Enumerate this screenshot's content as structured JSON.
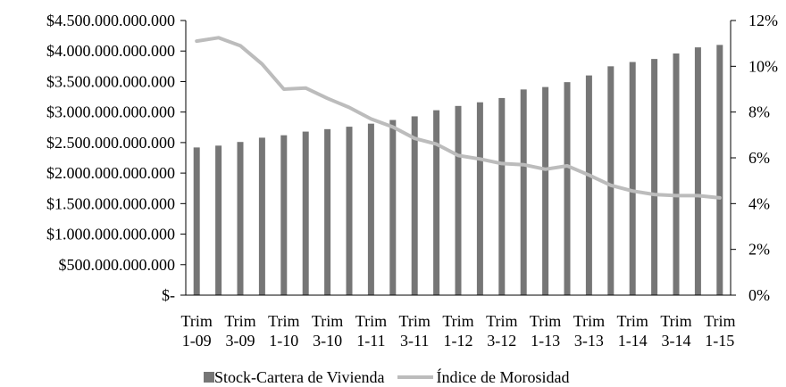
{
  "colors": {
    "bar": "#767676",
    "line": "#bcbcbc",
    "axis": "#000000"
  },
  "legend": {
    "bar_label": "Stock-Cartera de Vivienda",
    "line_label": "Índice de Morosidad"
  },
  "chart_data": {
    "type": "bar",
    "grid": false,
    "legend_position": "bottom",
    "x": [
      "1-09",
      "2-09",
      "3-09",
      "4-09",
      "1-10",
      "2-10",
      "3-10",
      "4-10",
      "1-11",
      "2-11",
      "3-11",
      "4-11",
      "1-12",
      "2-12",
      "3-12",
      "4-12",
      "1-13",
      "2-13",
      "3-13",
      "4-13",
      "1-14",
      "2-14",
      "3-14",
      "4-14",
      "1-15"
    ],
    "x_tick_labels": [
      {
        "index": 0,
        "line1": "Trim",
        "line2": "1-09"
      },
      {
        "index": 2,
        "line1": "Trim",
        "line2": "3-09"
      },
      {
        "index": 4,
        "line1": "Trim",
        "line2": "1-10"
      },
      {
        "index": 6,
        "line1": "Trim",
        "line2": "3-10"
      },
      {
        "index": 8,
        "line1": "Trim",
        "line2": "1-11"
      },
      {
        "index": 10,
        "line1": "Trim",
        "line2": "3-11"
      },
      {
        "index": 12,
        "line1": "Trim",
        "line2": "1-12"
      },
      {
        "index": 14,
        "line1": "Trim",
        "line2": "3-12"
      },
      {
        "index": 16,
        "line1": "Trim",
        "line2": "1-13"
      },
      {
        "index": 18,
        "line1": "Trim",
        "line2": "3-13"
      },
      {
        "index": 20,
        "line1": "Trim",
        "line2": "1-14"
      },
      {
        "index": 22,
        "line1": "Trim",
        "line2": "3-14"
      },
      {
        "index": 24,
        "line1": "Trim",
        "line2": "1-15"
      }
    ],
    "y_left": {
      "min": 0,
      "max": 4500000000000,
      "tick_labels": [
        "$-",
        "$500.000.000.000",
        "$1.000.000.000.000",
        "$1.500.000.000.000",
        "$2.000.000.000.000",
        "$2.500.000.000.000",
        "$3.000.000.000.000",
        "$3.500.000.000.000",
        "$4.000.000.000.000",
        "$4.500.000.000.000"
      ]
    },
    "y_right": {
      "min": 0,
      "max": 12,
      "tick_labels": [
        "0%",
        "2%",
        "4%",
        "6%",
        "8%",
        "10%",
        "12%"
      ]
    },
    "series": [
      {
        "name": "Stock-Cartera de Vivienda",
        "type": "bar",
        "axis": "left",
        "values": [
          2420000000000,
          2450000000000,
          2510000000000,
          2580000000000,
          2620000000000,
          2680000000000,
          2720000000000,
          2760000000000,
          2810000000000,
          2870000000000,
          2930000000000,
          3030000000000,
          3100000000000,
          3160000000000,
          3230000000000,
          3370000000000,
          3410000000000,
          3490000000000,
          3600000000000,
          3750000000000,
          3820000000000,
          3870000000000,
          3960000000000,
          4060000000000,
          4100000000000
        ]
      },
      {
        "name": "Índice de Morosidad",
        "type": "line",
        "axis": "right",
        "values": [
          11.1,
          11.25,
          10.9,
          10.1,
          9.0,
          9.05,
          8.6,
          8.2,
          7.7,
          7.35,
          6.85,
          6.6,
          6.1,
          5.95,
          5.75,
          5.7,
          5.5,
          5.65,
          5.25,
          4.8,
          4.55,
          4.4,
          4.35,
          4.35,
          4.25
        ]
      }
    ]
  }
}
